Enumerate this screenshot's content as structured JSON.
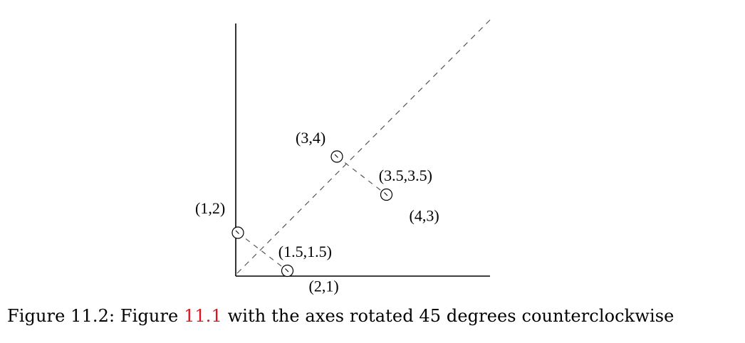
{
  "figure": {
    "points": [
      {
        "name": "p-1-2",
        "label": "(1,2)",
        "x": 1,
        "y": 2
      },
      {
        "name": "p-2-1",
        "label": "(2,1)",
        "x": 2,
        "y": 1
      },
      {
        "name": "p-3-4",
        "label": "(3,4)",
        "x": 3,
        "y": 4
      },
      {
        "name": "p-4-3",
        "label": "(4,3)",
        "x": 4,
        "y": 3
      }
    ],
    "projections": [
      {
        "name": "proj-1-5",
        "label": "(1.5,1.5)",
        "x": 1.5,
        "y": 1.5
      },
      {
        "name": "proj-3-5",
        "label": "(3.5,3.5)",
        "x": 3.5,
        "y": 3.5
      }
    ],
    "diagonal_style": "dashed",
    "colors": {
      "axis": "#000000",
      "dashed": "#555555",
      "marker": "#000000",
      "reference": "#e0141e"
    }
  },
  "caption": {
    "prefix": "Figure 11.2: Figure ",
    "ref": "11.1",
    "suffix": " with the axes rotated 45 degrees counterclockwise"
  }
}
